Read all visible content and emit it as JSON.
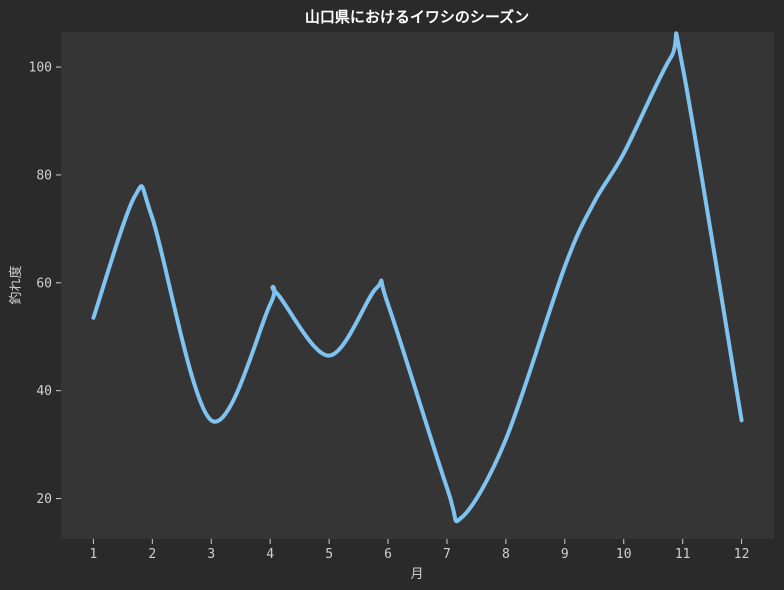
{
  "chart_data": {
    "type": "line",
    "title": "山口県におけるイワシのシーズン",
    "xlabel": "月",
    "ylabel": "釣れ度",
    "x": [
      1,
      1.7,
      2,
      3,
      4,
      4.1,
      5,
      5.8,
      6,
      7,
      7.25,
      8,
      9,
      9.5,
      10,
      10.8,
      11,
      12
    ],
    "series": [
      {
        "values": [
          53.5,
          76,
          72,
          34.5,
          56,
          58.2,
          46.5,
          59,
          56,
          22,
          16.5,
          31,
          63,
          75,
          84,
          101.8,
          100,
          34.5
        ]
      }
    ],
    "xticks": [
      1,
      2,
      3,
      4,
      5,
      6,
      7,
      8,
      9,
      10,
      11,
      12
    ],
    "yticks": [
      20,
      40,
      60,
      80,
      100
    ],
    "xlim": [
      0.45,
      12.55
    ],
    "ylim": [
      12.5,
      106.5
    ],
    "colors": {
      "figure_bg": "#2a2a2a",
      "plot_bg": "#353535",
      "line": "#7fc3f0",
      "tick": "#cfcfcf",
      "title": "#ffffff"
    },
    "grid": false,
    "legend": "none"
  }
}
